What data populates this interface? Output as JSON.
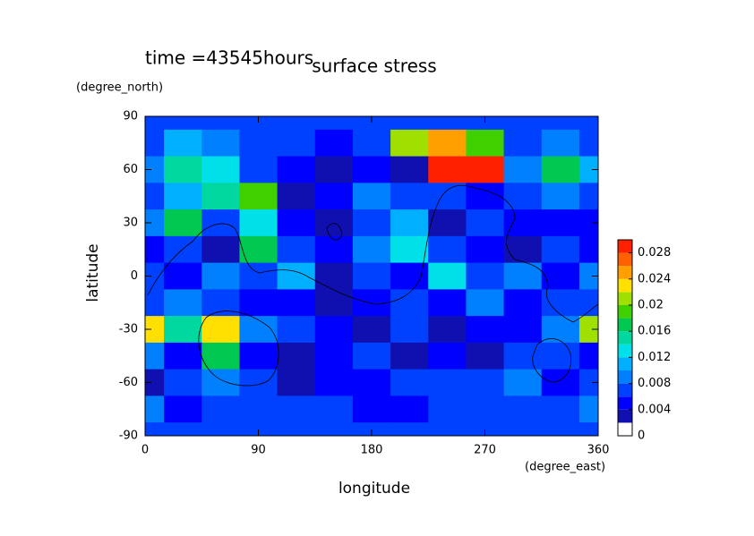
{
  "chart_data": {
    "type": "contour",
    "title": "surface stress",
    "subtitle": "time =43545hours",
    "x_label": "longitude",
    "y_label": "latitude",
    "x_unit": "(degree_east)",
    "y_unit": "(degree_north)",
    "x": [
      0,
      30,
      60,
      90,
      120,
      150,
      180,
      210,
      240,
      270,
      300,
      330,
      360
    ],
    "y": [
      90,
      75,
      60,
      45,
      30,
      15,
      0,
      -15,
      -30,
      -45,
      -60,
      -75,
      -90
    ],
    "z": [
      [
        0.006,
        0.006,
        0.006,
        0.006,
        0.006,
        0.006,
        0.006,
        0.006,
        0.006,
        0.006,
        0.006,
        0.006,
        0.006
      ],
      [
        0.006,
        0.01,
        0.008,
        0.006,
        0.006,
        0.004,
        0.006,
        0.02,
        0.024,
        0.018,
        0.006,
        0.008,
        0.006
      ],
      [
        0.008,
        0.014,
        0.012,
        0.006,
        0.004,
        0.002,
        0.004,
        0.002,
        0.028,
        0.028,
        0.008,
        0.016,
        0.01
      ],
      [
        0.006,
        0.01,
        0.014,
        0.018,
        0.002,
        0.004,
        0.008,
        0.006,
        0.006,
        0.004,
        0.006,
        0.008,
        0.006
      ],
      [
        0.008,
        0.016,
        0.006,
        0.012,
        0.004,
        0.002,
        0.006,
        0.01,
        0.002,
        0.006,
        0.004,
        0.004,
        0.004
      ],
      [
        0.004,
        0.006,
        0.002,
        0.016,
        0.006,
        0.004,
        0.008,
        0.012,
        0.006,
        0.004,
        0.002,
        0.006,
        0.004
      ],
      [
        0.006,
        0.004,
        0.008,
        0.006,
        0.01,
        0.002,
        0.006,
        0.004,
        0.012,
        0.006,
        0.008,
        0.004,
        0.008
      ],
      [
        0.006,
        0.008,
        0.006,
        0.004,
        0.004,
        0.002,
        0.004,
        0.006,
        0.004,
        0.008,
        0.004,
        0.006,
        0.006
      ],
      [
        0.022,
        0.014,
        0.022,
        0.008,
        0.006,
        0.004,
        0.002,
        0.006,
        0.002,
        0.004,
        0.004,
        0.008,
        0.02
      ],
      [
        0.008,
        0.004,
        0.016,
        0.004,
        0.002,
        0.004,
        0.006,
        0.002,
        0.004,
        0.002,
        0.006,
        0.006,
        0.004
      ],
      [
        0.002,
        0.006,
        0.008,
        0.006,
        0.002,
        0.004,
        0.004,
        0.006,
        0.006,
        0.006,
        0.008,
        0.004,
        0.006
      ],
      [
        0.008,
        0.004,
        0.006,
        0.006,
        0.006,
        0.006,
        0.004,
        0.004,
        0.006,
        0.006,
        0.006,
        0.006,
        0.008
      ],
      [
        0.006,
        0.006,
        0.006,
        0.006,
        0.006,
        0.006,
        0.006,
        0.006,
        0.006,
        0.006,
        0.006,
        0.006,
        0.006
      ]
    ],
    "xlim": [
      0,
      360
    ],
    "ylim": [
      -90,
      90
    ],
    "xticks": [
      0,
      90,
      180,
      270,
      360
    ],
    "yticks": [
      -90,
      -60,
      -30,
      0,
      30,
      60,
      90
    ],
    "levels": [
      0,
      0.002,
      0.004,
      0.006,
      0.008,
      0.01,
      0.012,
      0.014,
      0.016,
      0.018,
      0.02,
      0.022,
      0.024,
      0.026,
      0.028,
      0.03
    ],
    "colors": [
      "#ffffff",
      "#1010b0",
      "#0000ff",
      "#0040ff",
      "#0080ff",
      "#00b0ff",
      "#00e0e8",
      "#00d8a0",
      "#00c850",
      "#40d000",
      "#a0e000",
      "#ffe000",
      "#ffa000",
      "#ff6000",
      "#ff2000"
    ],
    "colorbar_ticks": [
      0,
      0.004,
      0.008,
      0.012,
      0.016,
      0.02,
      0.024,
      0.028
    ]
  }
}
